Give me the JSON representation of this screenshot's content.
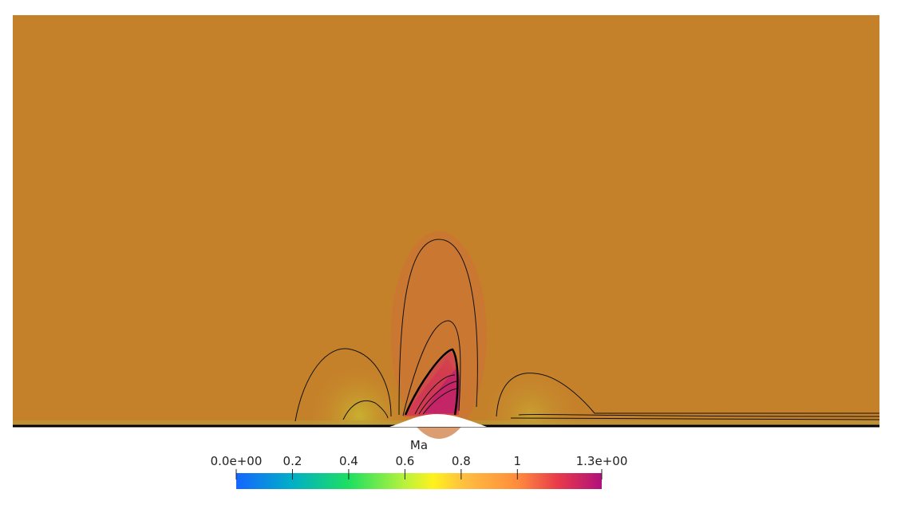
{
  "colorbar": {
    "title": "Ma",
    "range": [
      0,
      1.3
    ],
    "ticks": [
      {
        "value": 0,
        "label": "0.0e+00"
      },
      0.2,
      0.4,
      0.6,
      0.8,
      1,
      {
        "value": 1.3,
        "label": "1.3e+00"
      }
    ]
  }
}
